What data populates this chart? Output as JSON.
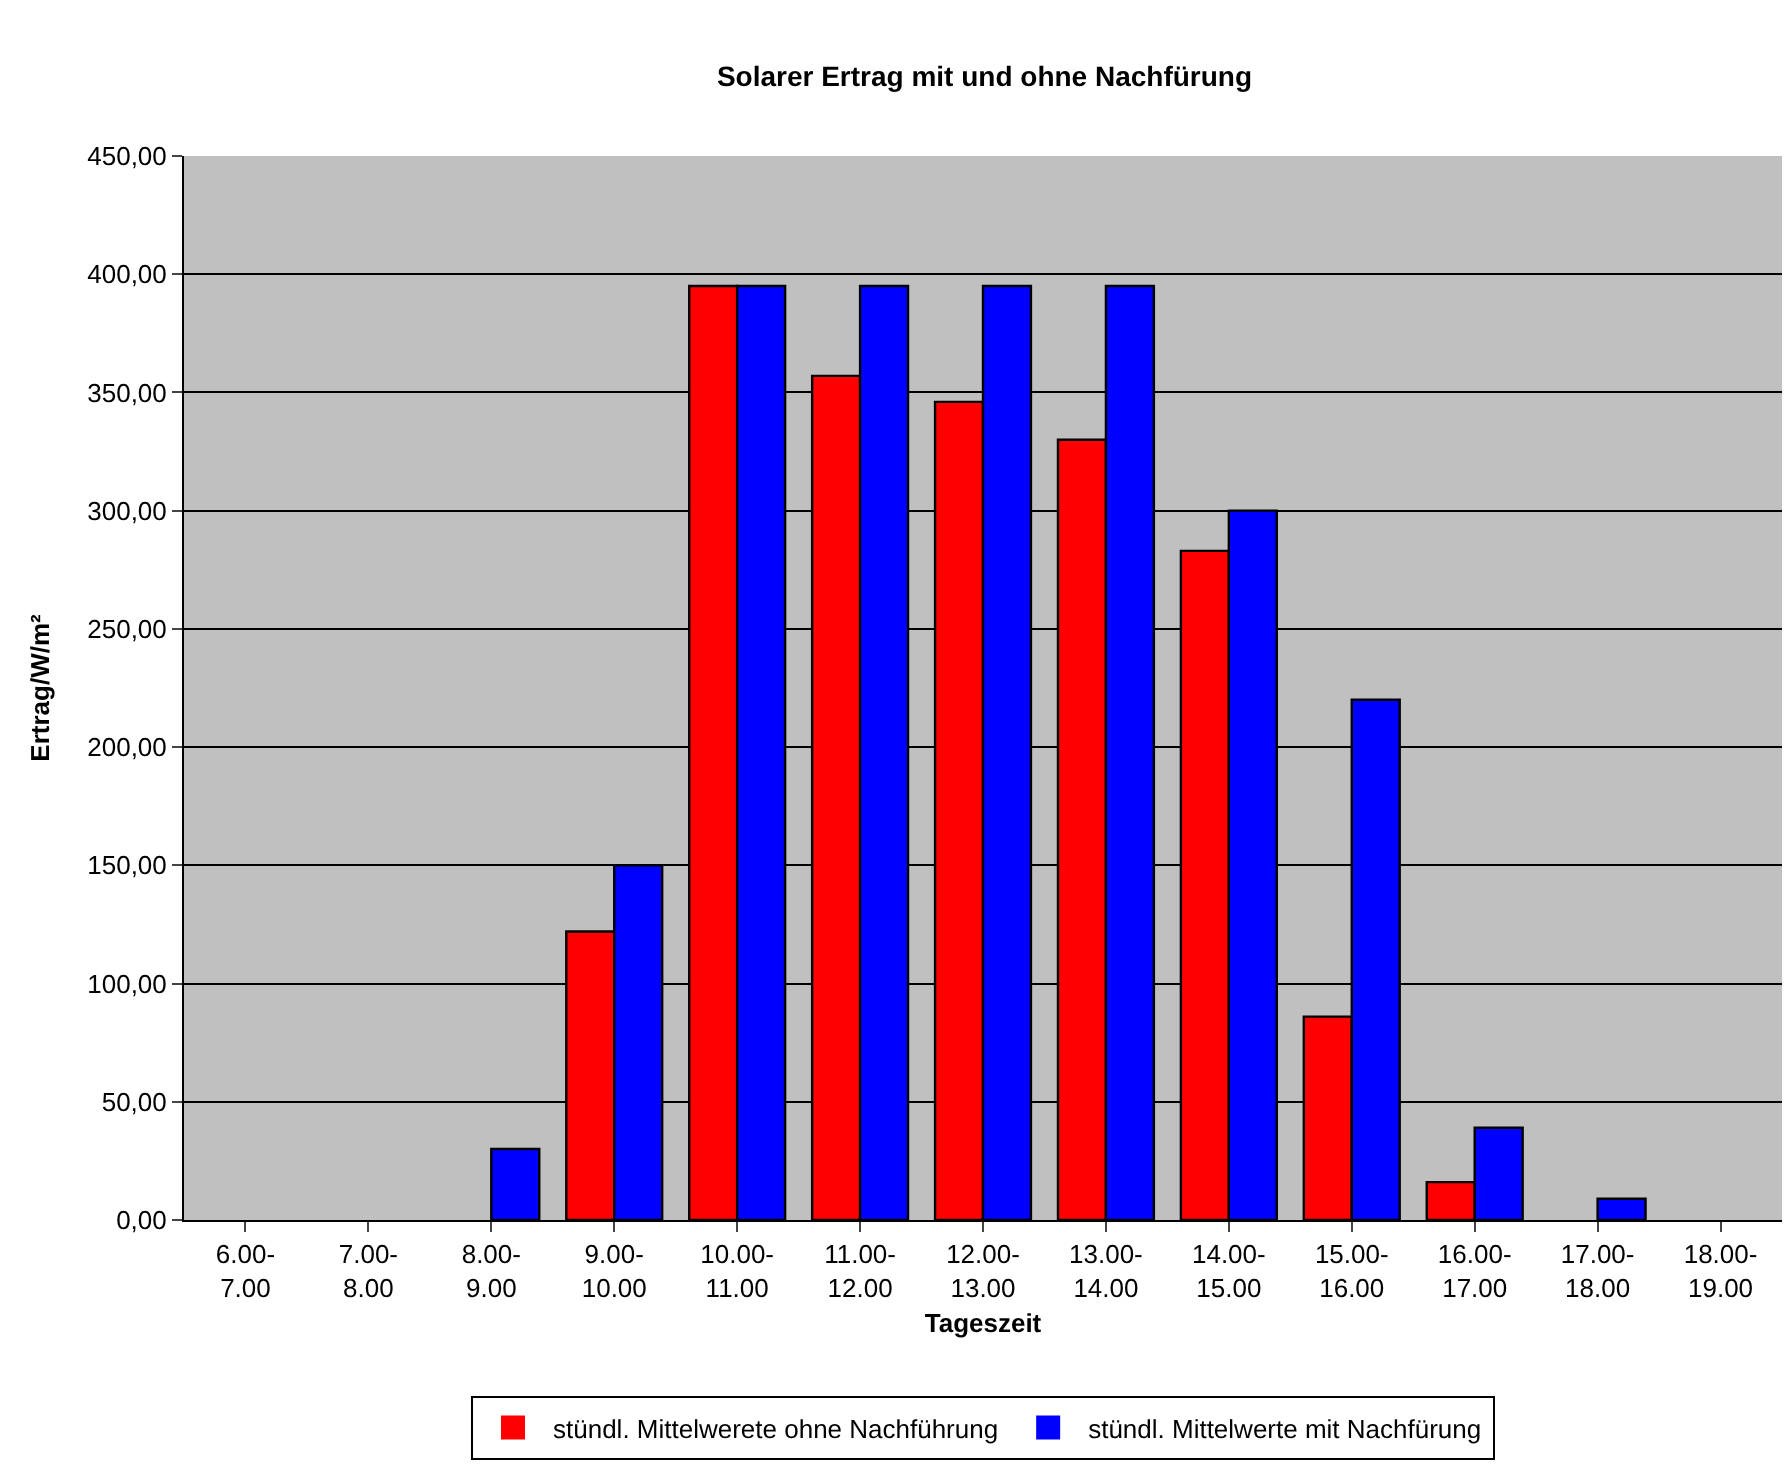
{
  "chart_data": {
    "type": "bar",
    "title": "Solarer Ertrag mit und ohne Nachfürung",
    "xlabel": "Tageszeit",
    "ylabel": "Ertrag/W/m²",
    "categories": [
      "6.00-\n7.00",
      "7.00-\n8.00",
      "8.00-\n9.00",
      "9.00-\n10.00",
      "10.00-\n11.00",
      "11.00-\n12.00",
      "12.00-\n13.00",
      "13.00-\n14.00",
      "14.00-\n15.00",
      "15.00-\n16.00",
      "16.00-\n17.00",
      "17.00-\n18.00",
      "18.00-\n19.00"
    ],
    "series": [
      {
        "name": "stündl. Mittelwerete ohne Nachführung",
        "color": "#ff0000",
        "values": [
          0,
          0,
          0,
          122,
          395,
          357,
          346,
          330,
          283,
          86,
          16,
          0,
          0
        ]
      },
      {
        "name": "stündl. Mittelwerte mit Nachfürung",
        "color": "#0000ff",
        "values": [
          0,
          0,
          30,
          150,
          395,
          395,
          395,
          395,
          300,
          220,
          39,
          9,
          0
        ]
      }
    ],
    "ylim": [
      0,
      450
    ],
    "yticks": [
      {
        "value": 0,
        "label": "0,00"
      },
      {
        "value": 50,
        "label": "50,00"
      },
      {
        "value": 100,
        "label": "100,00"
      },
      {
        "value": 150,
        "label": "150,00"
      },
      {
        "value": 200,
        "label": "200,00"
      },
      {
        "value": 250,
        "label": "250,00"
      },
      {
        "value": 300,
        "label": "300,00"
      },
      {
        "value": 350,
        "label": "350,00"
      },
      {
        "value": 400,
        "label": "400,00"
      },
      {
        "value": 450,
        "label": "450,00"
      }
    ],
    "grid": "y",
    "legend": "bottom"
  }
}
